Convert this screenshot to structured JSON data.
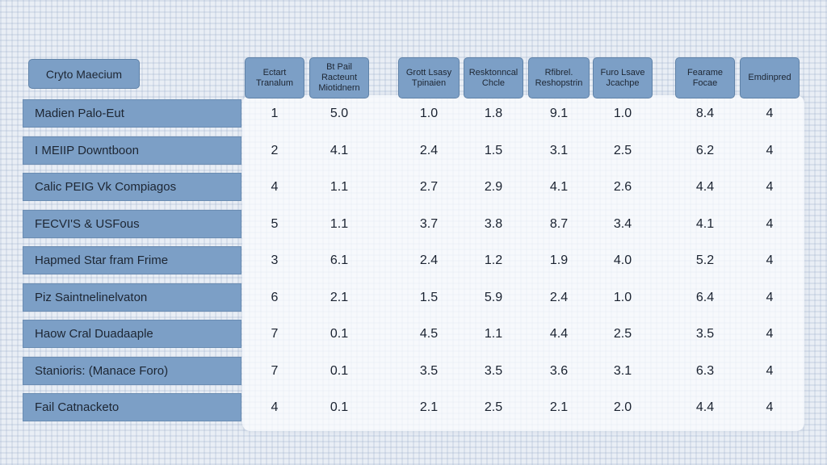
{
  "colors": {
    "header_fill": "#7c9fc6",
    "header_border": "#5f82a8",
    "background": "#e9eef5"
  },
  "chart_data": {
    "type": "table",
    "row_header_label": "Cryto Maecium",
    "columns": [
      "Ectart\nTranalum",
      "Bt Pail\nRacteunt\nMiotidnern",
      "Grott Lsasy\nTpinaien",
      "Resktonncal\nChcle",
      "Rfibrel.\nReshopstrin",
      "Furo Lsave\nJcachpe",
      "Fearame\nFocae",
      "Emdinpred"
    ],
    "rows": [
      {
        "label": "Madien Palo-Eut",
        "values": [
          "1",
          "5.0",
          "1.0",
          "1.8",
          "9.1",
          "1.0",
          "8.4",
          "4"
        ]
      },
      {
        "label": "I MEIIP Downtboon",
        "values": [
          "2",
          "4.1",
          "2.4",
          "1.5",
          "3.1",
          "2.5",
          "6.2",
          "4"
        ]
      },
      {
        "label": "Calic PEIG Vk Compiagos",
        "values": [
          "4",
          "1.1",
          "2.7",
          "2.9",
          "4.1",
          "2.6",
          "4.4",
          "4"
        ]
      },
      {
        "label": "FECVI'S & USFous",
        "values": [
          "5",
          "1.1",
          "3.7",
          "3.8",
          "8.7",
          "3.4",
          "4.1",
          "4"
        ]
      },
      {
        "label": "Hapmed Star fram Frime",
        "values": [
          "3",
          "6.1",
          "2.4",
          "1.2",
          "1.9",
          "4.0",
          "5.2",
          "4"
        ]
      },
      {
        "label": "Piz Saintnelinelvaton",
        "values": [
          "6",
          "2.1",
          "1.5",
          "5.9",
          "2.4",
          "1.0",
          "6.4",
          "4"
        ]
      },
      {
        "label": "Haow Cral Duadaaple",
        "values": [
          "7",
          "0.1",
          "4.5",
          "1.1",
          "4.4",
          "2.5",
          "3.5",
          "4"
        ]
      },
      {
        "label": "Stanioris: (Manace Foro)",
        "values": [
          "7",
          "0.1",
          "3.5",
          "3.5",
          "3.6",
          "3.1",
          "6.3",
          "4"
        ]
      },
      {
        "label": "Fail Catnacketo",
        "values": [
          "4",
          "0.1",
          "2.1",
          "2.5",
          "2.1",
          "2.0",
          "4.4",
          "4"
        ]
      }
    ]
  }
}
